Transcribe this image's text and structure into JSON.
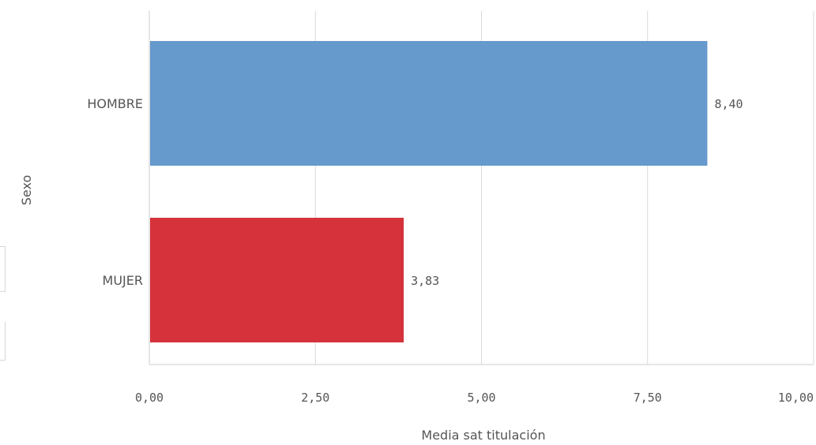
{
  "chart_data": {
    "type": "bar",
    "orientation": "horizontal",
    "categories": [
      "HOMBRE",
      "MUJER"
    ],
    "values": [
      8.4,
      3.83
    ],
    "value_labels": [
      "8,40",
      "3,83"
    ],
    "colors": [
      "#6699cc",
      "#d5323b"
    ],
    "xlabel": "Media sat titulación",
    "ylabel": "Sexo",
    "xlim": [
      0,
      10
    ],
    "xticks": [
      0,
      2.5,
      5,
      7.5,
      10
    ],
    "xtick_labels": [
      "0,00",
      "2,50",
      "5,00",
      "7,50",
      "10,00"
    ],
    "grid": true
  }
}
